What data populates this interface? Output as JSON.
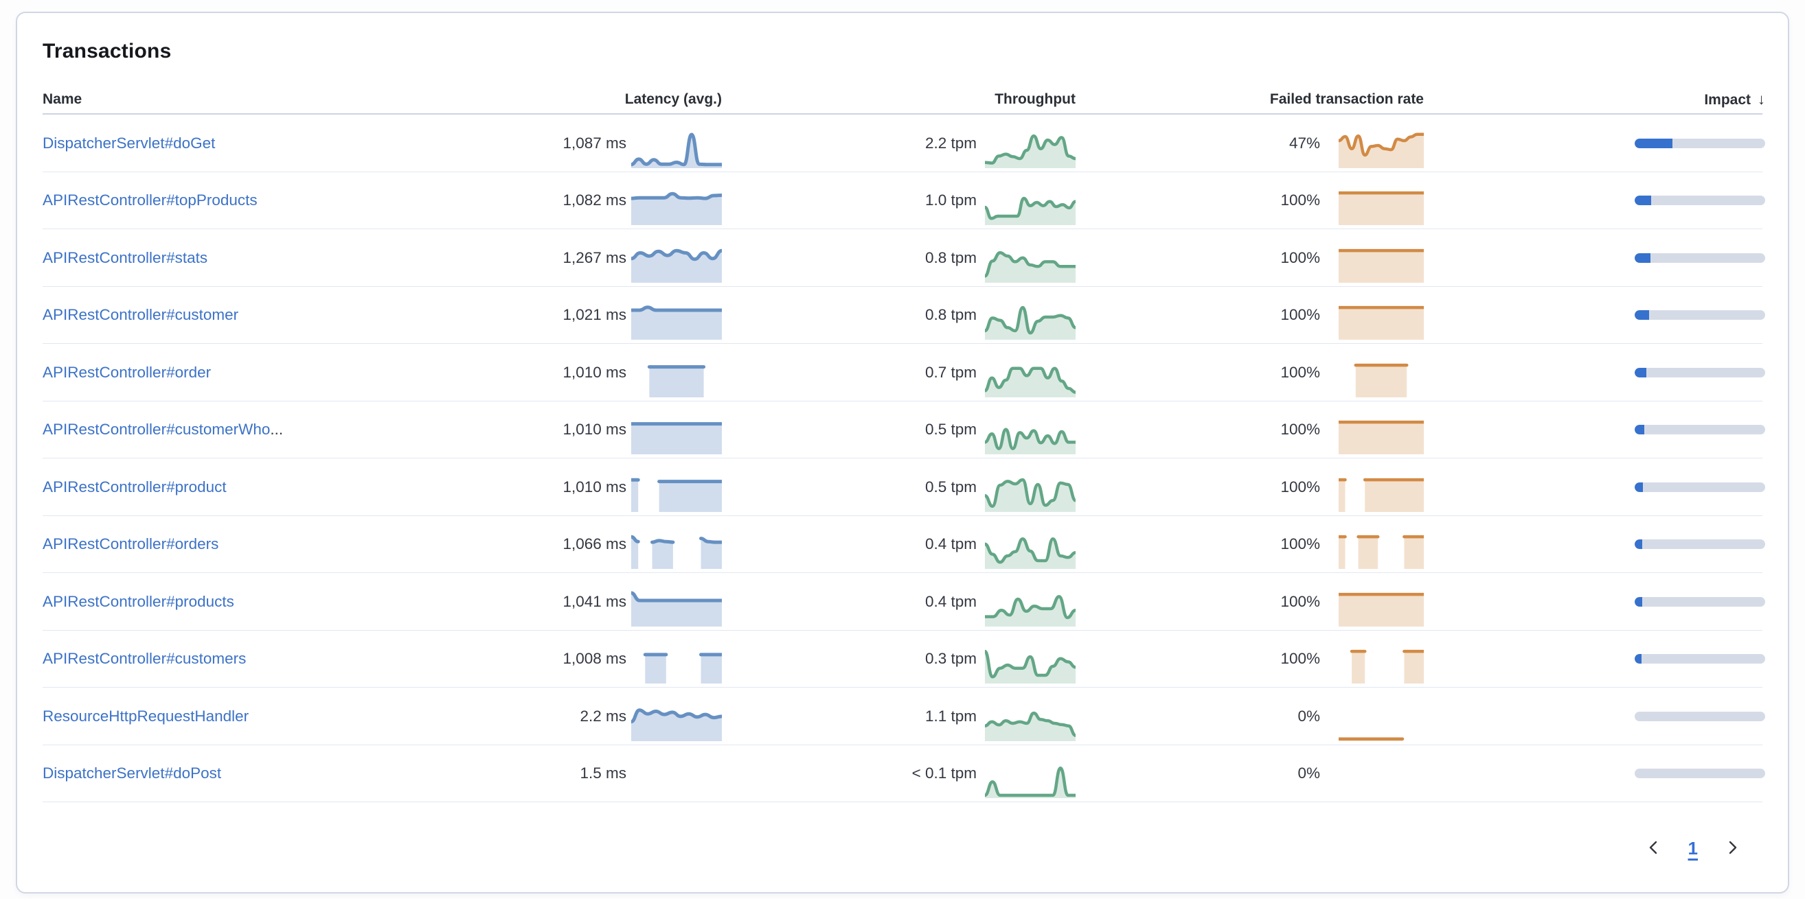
{
  "card": {
    "title": "Transactions"
  },
  "table": {
    "columns": [
      {
        "key": "name",
        "label": "Name",
        "align": "left"
      },
      {
        "key": "latency",
        "label": "Latency (avg.)",
        "align": "right"
      },
      {
        "key": "throughput",
        "label": "Throughput",
        "align": "right"
      },
      {
        "key": "failed_rate",
        "label": "Failed transaction rate",
        "align": "right"
      },
      {
        "key": "impact",
        "label": "Impact",
        "align": "right",
        "sorted": "desc",
        "sort_icon": "↓"
      }
    ],
    "rows": [
      {
        "name": "DispatcherServlet#doGet",
        "latency": "1,087 ms",
        "throughput": "2.2 tpm",
        "failed_rate": "47%",
        "impact_pct": 29,
        "latency_spark": [
          0.05,
          0.22,
          0.06,
          0.2,
          0.06,
          0.06,
          0.12,
          0.05,
          1.0,
          0.06,
          0.05,
          0.05,
          0.05
        ],
        "throughput_spark": [
          0.12,
          0.1,
          0.32,
          0.38,
          0.3,
          0.24,
          0.5,
          0.95,
          0.55,
          0.82,
          0.68,
          0.9,
          0.32,
          0.24
        ],
        "failed_spark": [
          0.8,
          0.93,
          0.55,
          0.95,
          0.35,
          0.62,
          0.65,
          0.55,
          0.52,
          0.85,
          0.8,
          0.92,
          1.0,
          1.0
        ]
      },
      {
        "name": "APIRestController#topProducts",
        "latency": "1,082 ms",
        "throughput": "1.0 tpm",
        "failed_rate": "100%",
        "impact_pct": 12.5,
        "latency_spark": [
          0.78,
          0.8,
          0.8,
          0.8,
          0.8,
          0.93,
          0.8,
          0.79,
          0.8,
          0.78,
          0.87,
          0.88
        ],
        "throughput_spark": [
          0.5,
          0.15,
          0.22,
          0.22,
          0.22,
          0.22,
          0.78,
          0.55,
          0.65,
          0.55,
          0.68,
          0.52,
          0.58,
          0.48,
          0.68
        ],
        "failed_spark": [
          0.95,
          0.95,
          0.95,
          0.95,
          0.95,
          0.95,
          0.95,
          0.95,
          0.95,
          0.95,
          0.95,
          0.95
        ]
      },
      {
        "name": "APIRestController#stats",
        "latency": "1,267 ms",
        "throughput": "0.8 tpm",
        "failed_rate": "100%",
        "impact_pct": 12,
        "latency_spark": [
          0.7,
          0.88,
          0.78,
          0.93,
          0.8,
          0.95,
          0.88,
          0.68,
          0.88,
          0.7,
          0.95
        ],
        "throughput_spark": [
          0.15,
          0.62,
          0.88,
          0.78,
          0.6,
          0.72,
          0.5,
          0.45,
          0.6,
          0.6,
          0.45,
          0.45,
          0.45
        ],
        "failed_spark": [
          0.95,
          0.95,
          0.95,
          0.95,
          0.95,
          0.95,
          0.95,
          0.95,
          0.95,
          0.95,
          0.95,
          0.95
        ]
      },
      {
        "name": "APIRestController#customer",
        "latency": "1,021 ms",
        "throughput": "0.8 tpm",
        "failed_rate": "100%",
        "impact_pct": 11,
        "latency_spark": [
          0.87,
          0.87,
          0.96,
          0.87,
          0.87,
          0.87,
          0.87,
          0.87,
          0.87,
          0.87,
          0.87,
          0.87
        ],
        "throughput_spark": [
          0.22,
          0.62,
          0.55,
          0.32,
          0.22,
          0.95,
          0.15,
          0.52,
          0.65,
          0.65,
          0.7,
          0.62,
          0.32
        ],
        "failed_spark": [
          0.95,
          0.95,
          0.95,
          0.95,
          0.95,
          0.95,
          0.95,
          0.95,
          0.95,
          0.95,
          0.95,
          0.95
        ]
      },
      {
        "name": "APIRestController#order",
        "latency": "1,010 ms",
        "throughput": "0.7 tpm",
        "failed_rate": "100%",
        "impact_pct": 9,
        "latency_spark": [
          null,
          null,
          0.9,
          0.9,
          0.9,
          0.9,
          0.9,
          0.9,
          0.9,
          null,
          null
        ],
        "throughput_spark": [
          0.15,
          0.55,
          0.25,
          0.48,
          0.85,
          0.85,
          0.62,
          0.85,
          0.85,
          0.55,
          0.85,
          0.45,
          0.22,
          0.1
        ],
        "failed_spark": [
          null,
          null,
          0.95,
          0.95,
          0.95,
          0.95,
          0.95,
          0.95,
          0.95,
          null,
          null
        ]
      },
      {
        "name": "APIRestController#customerWho",
        "truncation_dots": "...",
        "latency": "1,010 ms",
        "throughput": "0.5 tpm",
        "failed_rate": "100%",
        "impact_pct": 7.5,
        "latency_spark": [
          0.9,
          0.9,
          0.9,
          0.9,
          0.9,
          0.9,
          0.9,
          0.9,
          0.9,
          0.9
        ],
        "throughput_spark": [
          0.32,
          0.58,
          0.12,
          0.72,
          0.12,
          0.62,
          0.45,
          0.68,
          0.3,
          0.52,
          0.28,
          0.65,
          0.32,
          0.32
        ],
        "failed_spark": [
          0.95,
          0.95,
          0.95,
          0.95,
          0.95,
          0.95,
          0.95,
          0.95,
          0.95,
          0.95,
          0.95,
          0.95
        ]
      },
      {
        "name": "APIRestController#product",
        "latency": "1,010 ms",
        "throughput": "0.5 tpm",
        "failed_rate": "100%",
        "impact_pct": 6.5,
        "latency_spark": [
          0.95,
          0.95,
          null,
          null,
          0.9,
          0.9,
          0.9,
          0.9,
          0.9,
          0.9,
          0.9,
          0.9,
          0.9,
          0.9
        ],
        "throughput_spark": [
          0.45,
          0.12,
          0.78,
          0.9,
          0.82,
          0.95,
          0.2,
          0.8,
          0.15,
          0.3,
          0.85,
          0.8,
          0.3
        ],
        "failed_spark": [
          0.95,
          0.95,
          null,
          null,
          0.95,
          0.95,
          0.95,
          0.95,
          0.95,
          0.95,
          0.95,
          0.95,
          0.95,
          0.95
        ]
      },
      {
        "name": "APIRestController#orders",
        "latency": "1,066 ms",
        "throughput": "0.4 tpm",
        "failed_rate": "100%",
        "impact_pct": 6,
        "latency_spark": [
          0.95,
          0.8,
          null,
          0.78,
          0.83,
          0.8,
          0.78,
          null,
          null,
          null,
          0.9,
          0.8,
          0.78,
          0.78
        ],
        "throughput_spark": [
          0.72,
          0.4,
          0.15,
          0.35,
          0.48,
          0.88,
          0.5,
          0.2,
          0.2,
          0.88,
          0.35,
          0.3,
          0.45
        ],
        "failed_spark": [
          0.95,
          0.95,
          null,
          0.95,
          0.95,
          0.95,
          0.95,
          null,
          null,
          null,
          0.95,
          0.95,
          0.95,
          0.95
        ]
      },
      {
        "name": "APIRestController#products",
        "latency": "1,041 ms",
        "throughput": "0.4 tpm",
        "failed_rate": "100%",
        "impact_pct": 6,
        "latency_spark": [
          1.0,
          0.76,
          0.76,
          0.76,
          0.76,
          0.76,
          0.76,
          0.76,
          0.76,
          0.76,
          0.76,
          0.76
        ],
        "throughput_spark": [
          0.25,
          0.25,
          0.45,
          0.3,
          0.8,
          0.42,
          0.58,
          0.5,
          0.5,
          0.88,
          0.22,
          0.45
        ],
        "failed_spark": [
          0.95,
          0.95,
          0.95,
          0.95,
          0.95,
          0.95,
          0.95,
          0.95,
          0.95,
          0.95,
          0.95,
          0.95
        ]
      },
      {
        "name": "APIRestController#customers",
        "latency": "1,008 ms",
        "throughput": "0.3 tpm",
        "failed_rate": "100%",
        "impact_pct": 5,
        "latency_spark": [
          null,
          null,
          0.85,
          0.85,
          0.85,
          0.85,
          null,
          null,
          null,
          null,
          0.85,
          0.85,
          0.85,
          0.85
        ],
        "throughput_spark": [
          0.95,
          0.15,
          0.42,
          0.52,
          0.42,
          0.42,
          0.78,
          0.2,
          0.2,
          0.48,
          0.72,
          0.62,
          0.45
        ],
        "failed_spark": [
          null,
          null,
          0.95,
          0.95,
          0.95,
          null,
          null,
          null,
          null,
          null,
          0.95,
          0.95,
          0.95,
          0.95
        ]
      },
      {
        "name": "ResourceHttpRequestHandler",
        "latency": "2.2 ms",
        "throughput": "1.1 tpm",
        "failed_rate": "0%",
        "impact_pct": 0,
        "latency_spark": [
          0.55,
          0.92,
          0.8,
          0.88,
          0.78,
          0.85,
          0.72,
          0.8,
          0.7,
          0.78,
          0.68,
          0.72
        ],
        "throughput_spark": [
          0.42,
          0.55,
          0.45,
          0.58,
          0.5,
          0.55,
          0.5,
          0.82,
          0.62,
          0.58,
          0.5,
          0.46,
          0.42,
          0.12
        ],
        "failed_spark": [
          0.01,
          0.01,
          0.01,
          0.01,
          0.01,
          0.01,
          0.01,
          0.01,
          0.01,
          0.01,
          null,
          null,
          null
        ]
      },
      {
        "name": "DispatcherServlet#doPost",
        "latency": "1.5 ms",
        "throughput": "< 0.1 tpm",
        "failed_rate": "0%",
        "impact_pct": 0,
        "latency_spark": null,
        "throughput_spark": [
          0.03,
          0.45,
          0.03,
          0.03,
          0.03,
          0.03,
          0.03,
          0.03,
          0.03,
          0.03,
          0.88,
          0.03,
          0.03
        ],
        "failed_spark": null
      }
    ]
  },
  "pagination": {
    "current_page": "1",
    "prev_icon": "chevron-left",
    "next_icon": "chevron-right"
  },
  "colors": {
    "link_blue": "#3C72C7",
    "latency_line": "#6690C2",
    "throughput_line": "#63A686",
    "failed_line": "#D28A45",
    "impact_fill": "#3671CD",
    "impact_track": "#D5DBE6"
  }
}
